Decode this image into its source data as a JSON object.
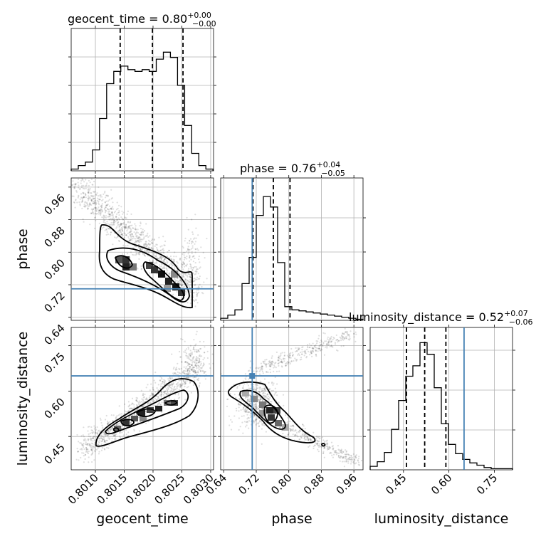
{
  "chart_data": {
    "type": "corner",
    "parameters": [
      "geocent_time",
      "phase",
      "luminosity_distance"
    ],
    "truths": {
      "geocent_time": null,
      "phase": 0.71,
      "luminosity_distance": 0.65
    },
    "truth_color": "#4682b4",
    "titles": {
      "geocent_time": {
        "main": "geocent_time = 0.80",
        "sup": "+0.00",
        "sub": "−0.00"
      },
      "phase": {
        "main": "phase = 0.76",
        "sup": "+0.04",
        "sub": "−0.05"
      },
      "luminosity_distance": {
        "main": "luminosity_distance = 0.52",
        "sup": "+0.07",
        "sub": "−0.06"
      }
    },
    "axis_labels": {
      "geocent_time": "geocent_time",
      "phase": "phase",
      "luminosity_distance": "luminosity_distance"
    },
    "ranges": {
      "geocent_time": [
        0.80058,
        0.80305
      ],
      "phase": [
        0.6325,
        0.9825
      ],
      "luminosity_distance": [
        0.34,
        0.81
      ]
    },
    "ticks": {
      "geocent_time": [
        "0.8010",
        "0.8015",
        "0.8020",
        "0.8025",
        "0.8030"
      ],
      "phase_y": [
        "0.64",
        "0.72",
        "0.80",
        "0.88",
        "0.96"
      ],
      "phase_x": [
        "0.64",
        "0.72",
        "0.80",
        "0.88",
        "0.96"
      ],
      "luminosity_distance_y": [
        "0.45",
        "0.60",
        "0.75"
      ],
      "luminosity_distance_x": [
        "0.45",
        "0.60",
        "0.75"
      ]
    },
    "quantiles": {
      "geocent_time": [
        0.80143,
        0.80199,
        0.80252
      ],
      "phase": [
        0.712,
        0.762,
        0.803
      ],
      "luminosity_distance": [
        0.46,
        0.52,
        0.59
      ]
    },
    "hist_geocent_time": {
      "edges_start": 0.80058,
      "edges_step": 0.000123,
      "counts": [
        1,
        3,
        5,
        12,
        30,
        50,
        57,
        60,
        58,
        57,
        58,
        57,
        64,
        68,
        65,
        49,
        26,
        10,
        3,
        1
      ]
    },
    "hist_phase": {
      "edges_start": 0.6325,
      "edges_step": 0.0175,
      "counts": [
        2,
        5,
        10,
        35,
        60,
        100,
        118,
        108,
        55,
        13,
        10,
        9,
        8,
        7,
        6,
        5,
        4,
        3,
        2,
        1
      ]
    },
    "hist_luminosity_distance": {
      "edges_start": 0.34,
      "edges_step": 0.0235,
      "counts": [
        3,
        7,
        15,
        35,
        60,
        81,
        90,
        110,
        100,
        71,
        40,
        22,
        14,
        9,
        6,
        4,
        2,
        1,
        1,
        1
      ]
    }
  }
}
